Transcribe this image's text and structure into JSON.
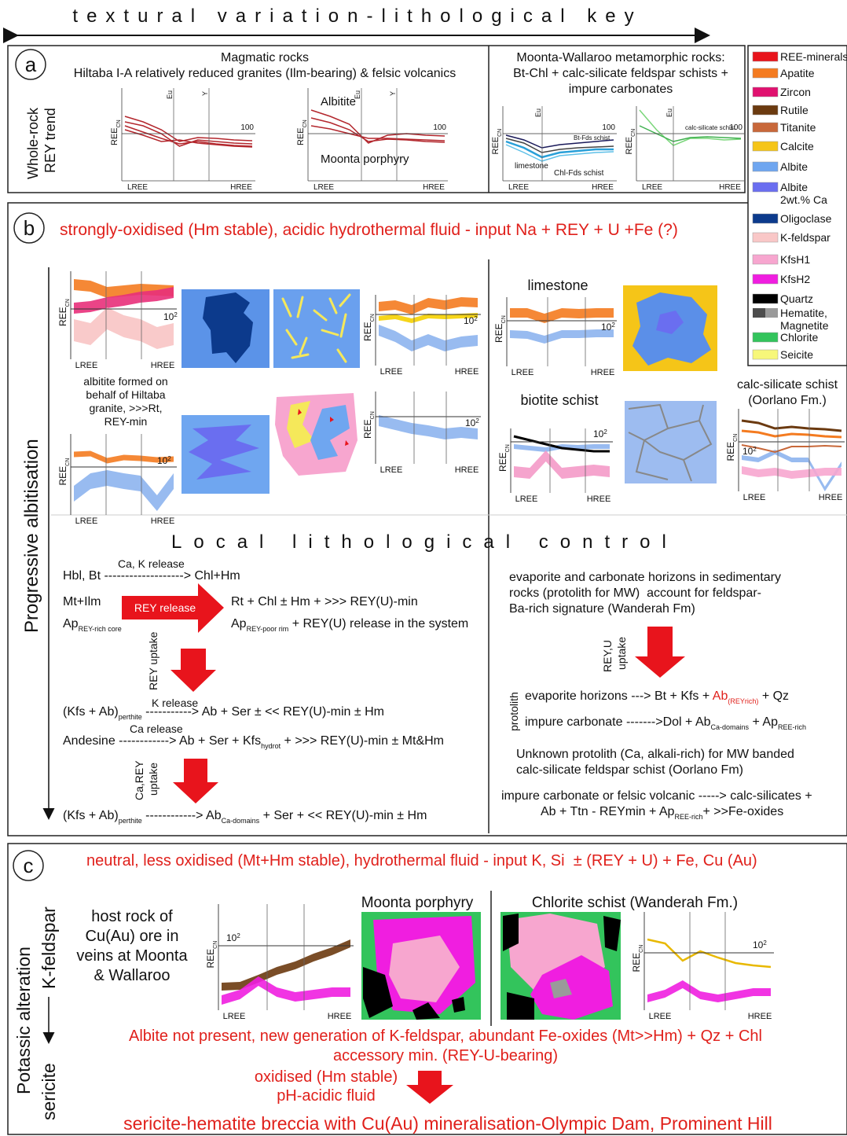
{
  "header": {
    "title": "textural variation-lithological key"
  },
  "axis": {
    "lree": "LREE",
    "hree": "HREE",
    "ree": "REE",
    "cn": "CN",
    "ten": "10",
    "sq": "2",
    "hundred": "100",
    "eu": "Eu",
    "y": "Y"
  },
  "legend": [
    {
      "lines": [
        "REE-minerals"
      ],
      "color": "#e8141c"
    },
    {
      "lines": [
        "Apatite"
      ],
      "color": "#f47b20"
    },
    {
      "lines": [
        "Zircon"
      ],
      "color": "#e0116f"
    },
    {
      "lines": [
        "Rutile"
      ],
      "color": "#6b3a10"
    },
    {
      "lines": [
        "Titanite"
      ],
      "color": "#c8683a"
    },
    {
      "lines": [
        "Calcite"
      ],
      "color": "#f5c518"
    },
    {
      "lines": [
        "Albite"
      ],
      "color": "#6fa6f0"
    },
    {
      "lines": [
        "Albite",
        "2wt.% Ca"
      ],
      "color": "#6a6ef0"
    },
    {
      "lines": [
        "Oligoclase"
      ],
      "color": "#0c3a8c"
    },
    {
      "lines": [
        "K-feldspar"
      ],
      "color": "#f9c7c7"
    },
    {
      "lines": [
        "KfsH1"
      ],
      "color": "#f7a6cf"
    },
    {
      "lines": [
        "KfsH2"
      ],
      "color": "#f01ee0"
    },
    {
      "lines": [
        "Quartz"
      ],
      "color": "#000000"
    },
    {
      "lines": [
        "Hematite,",
        "Magnetite"
      ],
      "color": "#4d4d4d",
      "color2": "#9a9a9a"
    },
    {
      "lines": [
        "Chlorite"
      ],
      "color": "#33c45c"
    },
    {
      "lines": [
        "Seicite"
      ],
      "color": "#f7f77a"
    }
  ],
  "section_a": {
    "letter": "a",
    "side_label": [
      "Whole-rock",
      "REY trend"
    ],
    "magmatic_title": [
      "Magmatic rocks",
      "Hiltaba I-A relatively reduced granites (Ilm-bearing) & felsic volcanics"
    ],
    "chart_labels": [
      "Albitite",
      "Moonta porphyry"
    ],
    "meta_title": [
      "Moonta-Wallaroo metamorphic rocks:",
      "Bt-Chl + calc-silicate feldspar schists +",
      "impure carbonates"
    ],
    "meta_labels": [
      "Bt-Fds schist",
      "limestone",
      "Chl-Fds schist",
      "calc-silicate schist"
    ]
  },
  "section_b": {
    "letter": "b",
    "heading": "strongly-oxidised (Hm stable), acidic hydrothermal fluid - input Na + REY + U +Fe (?)",
    "side_label": "Progressive albitisation",
    "albitite_caption": [
      "albitite formed on",
      "behalf of Hiltaba",
      "granite, >>>Rt,",
      "REY-min"
    ],
    "limestone": "limestone",
    "biotite_schist": "biotite schist",
    "calc_silicate": [
      "calc-silicate schist",
      "(Oorlano Fm.)"
    ],
    "local_title": "Local lithological control",
    "left": {
      "ca_k_release": "Ca, K release",
      "r1": "Hbl, Bt -------------------> Chl+Hm",
      "mt_ilm": "Mt+Ilm",
      "rey_release": "REY release",
      "r2": "Rt + Chl ± Hm + >>> REY(U)-min",
      "ap_core": [
        "Ap",
        "REY-rich core"
      ],
      "ap_rim": [
        "Ap",
        "REY-poor rim",
        " + REY(U) release in the system"
      ],
      "rey_uptake": "REY uptake",
      "k_release": "K release",
      "r3": [
        "(Kfs + Ab)",
        "perthite",
        " -----------> Ab + Ser ± << REY(U)-min ± Hm"
      ],
      "ca_release": "Ca release",
      "r4": [
        "Andesine ------------> Ab + Ser + Kfs",
        "hydrot",
        " + >>> REY(U)-min ± Mt&Hm"
      ],
      "ca_rey_uptake": [
        "Ca,REY",
        "uptake"
      ],
      "r5": [
        "(Kfs + Ab)",
        "perthite",
        " ------------> Ab",
        "Ca-domains",
        " + Ser + << REY(U)-min ± Hm"
      ]
    },
    "right": {
      "paragraph": [
        "evaporite and carbonate horizons in sedimentary",
        "rocks (protolith for MW)  account for feldspar-",
        "Ba-rich signature (Wanderah Fm)"
      ],
      "uptake": [
        "REY,U",
        "uptake"
      ],
      "protolith": "protolith",
      "evaporite": [
        "evaporite horizons ---> Bt + Kfs + ",
        "Ab",
        "(REYrich)",
        " + Qz"
      ],
      "impure": [
        "impure carbonate ------->Dol + Ab",
        "Ca-domains",
        " + Ap",
        "REE-rich"
      ],
      "unknown": [
        "Unknown protolith (Ca, alkali-rich) for MW banded",
        "calc-silicate feldspar schist (Oorlano Fm)"
      ],
      "felsic": [
        "impure carbonate or felsic volcanic -----> calc-silicates +",
        "Ab + Ttn - REYmin + Ap",
        "REE-rich",
        "+ >>Fe-oxides"
      ]
    }
  },
  "section_c": {
    "letter": "c",
    "heading": "neutral, less oxidised (Mt+Hm stable), hydrothermal fluid - input K, Si  ± (REY + U) + Fe, Cu (Au)",
    "side_label": "Potassic alteration",
    "kfs": "K-feldspar",
    "sericite": "sericite",
    "host_rock": [
      "host rock of",
      "Cu(Au) ore in",
      "veins at Moonta",
      "& Wallaroo"
    ],
    "moonta": "Moonta porphyry",
    "chlorite_schist": "Chlorite schist (Wanderah Fm.)",
    "notes": [
      "Albite not present, new generation of K-feldspar, abundant Fe-oxides (Mt>>Hm) + Qz + Chl",
      "accessory min. (REY-U-bearing)"
    ],
    "fluid": [
      "oxidised (Hm stable)",
      "pH-acidic fluid"
    ],
    "bottom": "sericite-hematite breccia with Cu(Au) mineralisation-Olympic Dam, Prominent Hill"
  }
}
